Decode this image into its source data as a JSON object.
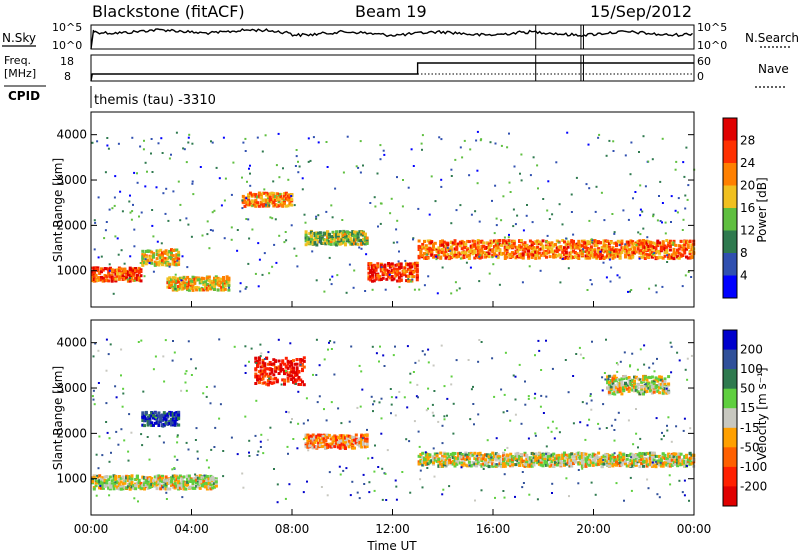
{
  "header": {
    "radar": "Blackstone (fitACF)",
    "beam": "Beam 19",
    "date": "15/Sep/2012"
  },
  "aux": {
    "nsky_label": "N.Sky",
    "nsky_ticks": [
      "10^5",
      "10^0"
    ],
    "nsearch_label": "N.Search",
    "nsearch_ticks": [
      "10^5",
      "10^0"
    ],
    "freq_label": "Freq.",
    "freq_unit": "[MHz]",
    "freq_ticks": [
      "18",
      "8"
    ],
    "nave_label": "Nave",
    "nave_ticks": [
      "60",
      "0"
    ],
    "cpid_label": "CPID",
    "cpid_text": "themis (tau) -3310"
  },
  "chart_data": [
    {
      "type": "heatmap",
      "name": "power-panel",
      "ylabel": "Slant Range [km]",
      "yticks": [
        1000,
        2000,
        3000,
        4000
      ],
      "ylim": [
        200,
        4500
      ],
      "xlim": [
        0,
        24
      ],
      "colorbar_label": "Power [dB]",
      "colorbar_ticks": [
        "4",
        "8",
        "12",
        "16",
        "20",
        "24",
        "28"
      ],
      "colorbar_colors": [
        "#0000ff",
        "#3050b0",
        "#2f7a4f",
        "#5fbf3f",
        "#f0c020",
        "#ff8000",
        "#ff3000",
        "#e00000"
      ],
      "features": [
        {
          "t0": 0.0,
          "t1": 2.0,
          "r0": 800,
          "r1": 1100,
          "level": 0.85
        },
        {
          "t0": 2.0,
          "t1": 3.5,
          "r0": 1150,
          "r1": 1500,
          "level": 0.6
        },
        {
          "t0": 3.0,
          "t1": 5.5,
          "r0": 600,
          "r1": 900,
          "level": 0.6
        },
        {
          "t0": 6.0,
          "t1": 8.0,
          "r0": 2450,
          "r1": 2750,
          "level": 0.7
        },
        {
          "t0": 8.5,
          "t1": 11.0,
          "r0": 1600,
          "r1": 1900,
          "level": 0.45
        },
        {
          "t0": 11.0,
          "t1": 13.0,
          "r0": 800,
          "r1": 1200,
          "level": 0.85
        },
        {
          "t0": 13.0,
          "t1": 24.0,
          "r0": 1300,
          "r1": 1700,
          "level": 0.75
        }
      ]
    },
    {
      "type": "heatmap",
      "name": "velocity-panel",
      "ylabel": "Slant Range [km]",
      "yticks": [
        1000,
        2000,
        3000,
        4000
      ],
      "ylim": [
        200,
        4500
      ],
      "xlim": [
        0,
        24
      ],
      "xticks": [
        "00:00",
        "04:00",
        "08:00",
        "12:00",
        "16:00",
        "20:00",
        "00:00"
      ],
      "xlabel": "Time UT",
      "colorbar_label": "Velocity [m s⁻¹]",
      "colorbar_ticks": [
        "200",
        "100",
        "50",
        "15",
        "-15",
        "-50",
        "-100",
        "-200"
      ],
      "colorbar_colors": [
        "#0000cc",
        "#30509a",
        "#2f7a4f",
        "#5fcf3f",
        "#c8c8c0",
        "#ffa000",
        "#ff6000",
        "#ff2000",
        "#e00000"
      ],
      "features": [
        {
          "t0": 0.0,
          "t1": 5.0,
          "r0": 800,
          "r1": 1100,
          "level": 0.5
        },
        {
          "t0": 2.0,
          "t1": 3.5,
          "r0": 2200,
          "r1": 2500,
          "level": 0.05
        },
        {
          "t0": 6.5,
          "t1": 8.5,
          "r0": 3100,
          "r1": 3700,
          "level": 0.95
        },
        {
          "t0": 8.5,
          "t1": 11.0,
          "r0": 1700,
          "r1": 2000,
          "level": 0.7
        },
        {
          "t0": 13.0,
          "t1": 24.0,
          "r0": 1300,
          "r1": 1600,
          "level": 0.5
        },
        {
          "t0": 20.5,
          "t1": 23.0,
          "r0": 2900,
          "r1": 3300,
          "level": 0.5
        }
      ]
    }
  ]
}
